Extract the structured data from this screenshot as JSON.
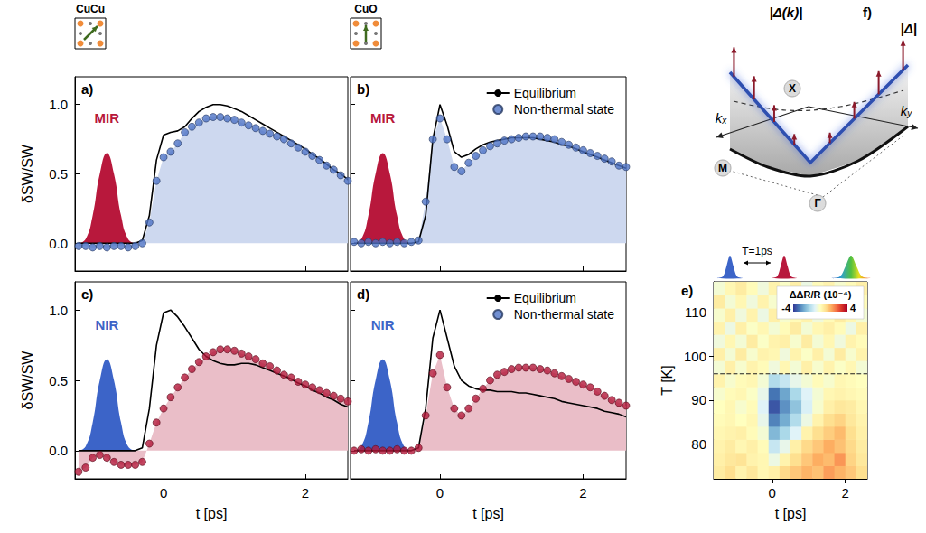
{
  "chart_data": [
    {
      "type": "line",
      "letter": "a)",
      "header": "CuCu",
      "ylabel": "δSW/SW",
      "xlim": [
        -1.25,
        2.6
      ],
      "ylim": [
        -0.2,
        1.2
      ],
      "xticks": [
        0,
        2
      ],
      "yticks": [
        {
          "value": 0,
          "label": "0.0"
        },
        {
          "value": 0.5,
          "label": "0.5"
        },
        {
          "value": 1,
          "label": "1.0"
        }
      ],
      "tick_labels": "y",
      "grid": false,
      "x": [
        -1.2,
        -1.1,
        -1,
        -0.9,
        -0.8,
        -0.7,
        -0.6,
        -0.5,
        -0.4,
        -0.3,
        -0.2,
        -0.1,
        0,
        0.1,
        0.2,
        0.3,
        0.4,
        0.5,
        0.6,
        0.7,
        0.8,
        0.9,
        1,
        1.1,
        1.2,
        1.3,
        1.4,
        1.5,
        1.6,
        1.7,
        1.8,
        1.9,
        2,
        2.1,
        2.2,
        2.3,
        2.4,
        2.5,
        2.6
      ],
      "series": [
        {
          "name": "Equilibrium",
          "type": "line",
          "color": "#000000",
          "values": [
            0,
            0,
            0,
            0,
            0,
            0,
            0,
            0,
            0,
            0.02,
            0.2,
            0.6,
            0.78,
            0.8,
            0.81,
            0.84,
            0.9,
            0.95,
            0.98,
            1.0,
            1.0,
            0.99,
            0.97,
            0.95,
            0.92,
            0.89,
            0.86,
            0.83,
            0.8,
            0.77,
            0.74,
            0.71,
            0.68,
            0.64,
            0.61,
            0.57,
            0.53,
            0.5,
            0.46
          ]
        },
        {
          "name": "Non-thermal state",
          "type": "scatter",
          "marker": "circle",
          "color": "#4e73c6",
          "values": [
            -0.02,
            -0.02,
            -0.03,
            -0.02,
            -0.03,
            -0.02,
            -0.02,
            -0.03,
            -0.02,
            0,
            0.15,
            0.45,
            0.62,
            0.66,
            0.72,
            0.8,
            0.84,
            0.87,
            0.9,
            0.91,
            0.91,
            0.9,
            0.89,
            0.87,
            0.85,
            0.83,
            0.81,
            0.79,
            0.77,
            0.75,
            0.72,
            0.69,
            0.66,
            0.63,
            0.6,
            0.56,
            0.53,
            0.49,
            0.45
          ]
        }
      ],
      "pump": {
        "label": "MIR",
        "color": "#b8183c",
        "x": [
          -1.2,
          -1.1,
          -1,
          -0.9,
          -0.8,
          -0.7,
          -0.6,
          -0.5,
          -0.4
        ],
        "values": [
          0,
          0.03,
          0.2,
          0.5,
          0.65,
          0.5,
          0.2,
          0.03,
          0
        ]
      }
    },
    {
      "type": "line",
      "letter": "b)",
      "header": "CuO",
      "xlim": [
        -1.25,
        2.6
      ],
      "ylim": [
        -0.2,
        1.2
      ],
      "xticks": [
        0,
        2
      ],
      "yticks": [
        {
          "value": 0,
          "label": "0.0"
        },
        {
          "value": 0.5,
          "label": "0.5"
        },
        {
          "value": 1,
          "label": "1.0"
        }
      ],
      "tick_labels": false,
      "grid": false,
      "legend": "upper right",
      "x": [
        -1.2,
        -1.1,
        -1,
        -0.9,
        -0.8,
        -0.7,
        -0.6,
        -0.5,
        -0.4,
        -0.3,
        -0.2,
        -0.1,
        0,
        0.1,
        0.2,
        0.3,
        0.4,
        0.5,
        0.6,
        0.7,
        0.8,
        0.9,
        1,
        1.1,
        1.2,
        1.3,
        1.4,
        1.5,
        1.6,
        1.7,
        1.8,
        1.9,
        2,
        2.1,
        2.2,
        2.3,
        2.4,
        2.5,
        2.6
      ],
      "series": [
        {
          "name": "Equilibrium",
          "type": "line",
          "color": "#000000",
          "values": [
            0,
            0,
            0,
            0,
            0,
            0,
            0,
            0,
            0,
            0.01,
            0.2,
            0.75,
            1.0,
            0.85,
            0.66,
            0.62,
            0.64,
            0.68,
            0.71,
            0.73,
            0.74,
            0.75,
            0.76,
            0.76,
            0.76,
            0.76,
            0.75,
            0.74,
            0.73,
            0.71,
            0.7,
            0.68,
            0.66,
            0.64,
            0.62,
            0.6,
            0.58,
            0.56,
            0.54
          ]
        },
        {
          "name": "Non-thermal state",
          "type": "scatter",
          "marker": "circle",
          "color": "#4e73c6",
          "values": [
            0.01,
            0,
            0.01,
            0,
            0.01,
            0,
            0.01,
            0,
            0.01,
            0.02,
            0.3,
            0.75,
            0.9,
            0.75,
            0.55,
            0.52,
            0.58,
            0.63,
            0.67,
            0.7,
            0.72,
            0.74,
            0.75,
            0.76,
            0.77,
            0.77,
            0.77,
            0.76,
            0.75,
            0.73,
            0.71,
            0.69,
            0.67,
            0.65,
            0.63,
            0.61,
            0.59,
            0.56,
            0.55
          ]
        }
      ],
      "pump": {
        "label": "MIR",
        "color": "#b8183c",
        "x": [
          -1.2,
          -1.1,
          -1,
          -0.9,
          -0.8,
          -0.7,
          -0.6,
          -0.5,
          -0.4
        ],
        "values": [
          0,
          0.03,
          0.2,
          0.5,
          0.65,
          0.5,
          0.2,
          0.03,
          0
        ]
      }
    },
    {
      "type": "line",
      "letter": "c)",
      "ylabel": "δSW/SW",
      "xlabel": "t [ps]",
      "xlim": [
        -1.25,
        2.6
      ],
      "ylim": [
        -0.2,
        1.2
      ],
      "xticks": [
        0,
        2
      ],
      "yticks": [
        {
          "value": 0,
          "label": "0.0"
        },
        {
          "value": 0.5,
          "label": "0.5"
        },
        {
          "value": 1,
          "label": "1.0"
        }
      ],
      "grid": false,
      "x": [
        -1.2,
        -1.1,
        -1,
        -0.9,
        -0.8,
        -0.7,
        -0.6,
        -0.5,
        -0.4,
        -0.3,
        -0.2,
        -0.1,
        0,
        0.1,
        0.2,
        0.3,
        0.4,
        0.5,
        0.6,
        0.7,
        0.8,
        0.9,
        1,
        1.1,
        1.2,
        1.3,
        1.4,
        1.5,
        1.6,
        1.7,
        1.8,
        1.9,
        2,
        2.1,
        2.2,
        2.3,
        2.4,
        2.5,
        2.6
      ],
      "series": [
        {
          "name": "Equilibrium",
          "type": "line",
          "color": "#000000",
          "values": [
            0,
            0,
            0,
            0,
            0,
            0,
            0,
            0,
            0,
            0.02,
            0.3,
            0.75,
            0.98,
            1.0,
            0.95,
            0.88,
            0.8,
            0.72,
            0.67,
            0.64,
            0.62,
            0.61,
            0.61,
            0.62,
            0.62,
            0.61,
            0.59,
            0.57,
            0.55,
            0.53,
            0.51,
            0.48,
            0.46,
            0.43,
            0.41,
            0.38,
            0.36,
            0.33,
            0.31
          ]
        },
        {
          "name": "Non-thermal state",
          "type": "scatter",
          "marker": "circle",
          "color": "#b3183a",
          "values": [
            -0.15,
            -0.12,
            -0.05,
            -0.03,
            -0.05,
            -0.08,
            -0.1,
            -0.1,
            -0.1,
            -0.08,
            0.05,
            0.2,
            0.3,
            0.38,
            0.45,
            0.52,
            0.58,
            0.63,
            0.67,
            0.7,
            0.72,
            0.72,
            0.71,
            0.69,
            0.67,
            0.65,
            0.62,
            0.6,
            0.57,
            0.54,
            0.52,
            0.49,
            0.47,
            0.45,
            0.43,
            0.41,
            0.39,
            0.37,
            0.35
          ]
        }
      ],
      "pump": {
        "label": "NIR",
        "color": "#3c64c8",
        "x": [
          -1.2,
          -1.1,
          -1,
          -0.9,
          -0.8,
          -0.7,
          -0.6,
          -0.5,
          -0.4
        ],
        "values": [
          0,
          0.03,
          0.2,
          0.5,
          0.65,
          0.5,
          0.2,
          0.03,
          0
        ]
      }
    },
    {
      "type": "line",
      "letter": "d)",
      "xlabel": "t [ps]",
      "xlim": [
        -1.25,
        2.6
      ],
      "ylim": [
        -0.2,
        1.2
      ],
      "xticks": [
        0,
        2
      ],
      "yticks": [
        {
          "value": 0,
          "label": "0.0"
        },
        {
          "value": 0.5,
          "label": "0.5"
        },
        {
          "value": 1,
          "label": "1.0"
        }
      ],
      "tick_labels": "x",
      "grid": false,
      "legend": "upper right",
      "x": [
        -1.2,
        -1.1,
        -1,
        -0.9,
        -0.8,
        -0.7,
        -0.6,
        -0.5,
        -0.4,
        -0.3,
        -0.2,
        -0.1,
        0,
        0.1,
        0.2,
        0.3,
        0.4,
        0.5,
        0.6,
        0.7,
        0.8,
        0.9,
        1,
        1.1,
        1.2,
        1.3,
        1.4,
        1.5,
        1.6,
        1.7,
        1.8,
        1.9,
        2,
        2.1,
        2.2,
        2.3,
        2.4,
        2.5,
        2.6
      ],
      "series": [
        {
          "name": "Equilibrium",
          "type": "line",
          "color": "#000000",
          "values": [
            0,
            0,
            0,
            0,
            0,
            0,
            0,
            0,
            0,
            0.02,
            0.3,
            0.8,
            1.0,
            0.8,
            0.6,
            0.5,
            0.46,
            0.44,
            0.43,
            0.43,
            0.42,
            0.42,
            0.42,
            0.41,
            0.41,
            0.4,
            0.39,
            0.38,
            0.37,
            0.35,
            0.34,
            0.33,
            0.32,
            0.31,
            0.3,
            0.28,
            0.27,
            0.26,
            0.24
          ]
        },
        {
          "name": "Non-thermal state",
          "type": "scatter",
          "marker": "circle",
          "color": "#b3183a",
          "values": [
            0,
            0.01,
            0,
            0.01,
            0,
            0,
            0.01,
            0,
            0,
            0.02,
            0.25,
            0.55,
            0.68,
            0.45,
            0.3,
            0.25,
            0.3,
            0.37,
            0.44,
            0.5,
            0.54,
            0.56,
            0.58,
            0.59,
            0.59,
            0.59,
            0.58,
            0.57,
            0.55,
            0.53,
            0.51,
            0.49,
            0.47,
            0.45,
            0.42,
            0.39,
            0.36,
            0.34,
            0.32
          ]
        }
      ],
      "pump": {
        "label": "NIR",
        "color": "#3c64c8",
        "x": [
          -1.2,
          -1.1,
          -1,
          -0.9,
          -0.8,
          -0.7,
          -0.6,
          -0.5,
          -0.4
        ],
        "values": [
          0,
          0.03,
          0.2,
          0.5,
          0.65,
          0.5,
          0.2,
          0.03,
          0
        ]
      }
    },
    {
      "type": "heatmap",
      "letter": "e)",
      "xlabel": "t [ps]",
      "ylabel": "T [K]",
      "xlim": [
        -1.6,
        2.6
      ],
      "ylim": [
        72,
        117
      ],
      "xticks": [
        0,
        2
      ],
      "yticks": [
        80,
        90,
        100,
        110
      ],
      "grid": false,
      "hline": 96,
      "line_style": "dashed",
      "pulse_label": "T=1ps",
      "x": [
        -1.45,
        -1.15,
        -0.85,
        -0.55,
        -0.25,
        0.05,
        0.35,
        0.65,
        0.95,
        1.25,
        1.55,
        1.85,
        2.15,
        2.45
      ],
      "y": [
        73.5,
        76.5,
        79.5,
        82.5,
        85.5,
        88.5,
        91.5,
        94.5,
        97.5,
        100.5,
        103.5,
        106.5,
        109.5,
        112.5,
        115.5
      ],
      "cells": [
        [
          0.5,
          0.8,
          0.3,
          0.6,
          0.2,
          0.4,
          0.9,
          1.2,
          1.5,
          1.3,
          1.8,
          1.5,
          1.2,
          0.8
        ],
        [
          0.4,
          0.6,
          0.7,
          0.3,
          0.2,
          -0.5,
          0.3,
          0.8,
          1.2,
          1.6,
          1.4,
          1.9,
          1.0,
          0.6
        ],
        [
          0.3,
          0.5,
          0.2,
          0.4,
          0.1,
          -1.2,
          -0.6,
          0.4,
          0.9,
          1.2,
          1.6,
          1.3,
          0.9,
          0.5
        ],
        [
          0.2,
          0.3,
          0.4,
          0.1,
          -0.3,
          -2.2,
          -1.6,
          -0.8,
          0.3,
          0.8,
          1.1,
          1.4,
          0.8,
          0.4
        ],
        [
          0.1,
          0.2,
          0,
          0.2,
          -0.6,
          -3.0,
          -2.4,
          -1.5,
          -0.5,
          0.3,
          0.8,
          1.0,
          0.6,
          0.3
        ],
        [
          0,
          0.2,
          -0.2,
          0.1,
          -0.8,
          -3.6,
          -2.8,
          -2.0,
          -0.9,
          -0.2,
          0.4,
          0.6,
          0.5,
          0.2
        ],
        [
          -0.2,
          0.1,
          0.2,
          -0.1,
          -0.6,
          -3.2,
          -2.5,
          -1.6,
          -0.8,
          -0.3,
          0.2,
          0.3,
          0.2,
          0.1
        ],
        [
          0.3,
          -0.2,
          0.1,
          0.2,
          -0.3,
          -1.5,
          -1.2,
          -0.6,
          -0.3,
          0.1,
          -0.2,
          0.2,
          0.1,
          0
        ],
        [
          -0.3,
          0.4,
          -0.2,
          0.3,
          0.1,
          -0.4,
          0.2,
          -0.3,
          0.4,
          -0.2,
          0.3,
          -0.1,
          0.2,
          -0.3
        ],
        [
          0.4,
          -0.3,
          0.5,
          -0.2,
          0.3,
          0.2,
          -0.4,
          0.3,
          -0.1,
          0.4,
          -0.3,
          0.5,
          -0.2,
          0.3
        ],
        [
          -0.4,
          0.2,
          -0.3,
          0.5,
          -0.1,
          0.3,
          0.4,
          -0.2,
          0.5,
          -0.3,
          0.2,
          -0.4,
          0.3,
          0.1
        ],
        [
          0.3,
          -0.5,
          0.4,
          -0.1,
          0.2,
          -0.3,
          0.1,
          0.5,
          -0.3,
          0.2,
          0.4,
          0.1,
          -0.5,
          0.4
        ],
        [
          -0.2,
          0.4,
          -0.4,
          0.3,
          -0.5,
          0.4,
          -0.2,
          0.1,
          0.3,
          -0.4,
          0.1,
          0.5,
          0.2,
          -0.3
        ],
        [
          0.5,
          -0.3,
          0.2,
          -0.4,
          0.3,
          -0.2,
          0.5,
          -0.3,
          0.2,
          0.3,
          -0.4,
          0.2,
          0.4,
          0.1
        ],
        [
          -0.3,
          0.2,
          0.5,
          0.1,
          -0.4,
          0.3,
          -0.1,
          0.4,
          -0.5,
          0.1,
          0.3,
          -0.2,
          0.1,
          0.4
        ]
      ],
      "colorbar": {
        "label": "ΔΔR/R (10⁻⁴)",
        "range": [
          -4,
          4
        ],
        "ticks": [
          -4,
          4
        ],
        "colors": [
          "#313695",
          "#4575b4",
          "#74add1",
          "#abd9e9",
          "#e0f3f8",
          "#ffffbf",
          "#fee090",
          "#fdae61",
          "#f46d43",
          "#d73027",
          "#a50026"
        ]
      }
    }
  ],
  "diagram": {
    "letter": "f)",
    "labels": {
      "gap": "|Δ(k)|",
      "max": "|Δ|"
    },
    "points": [
      "X",
      "M",
      "Γ"
    ],
    "axes": [
      {
        "base": "k",
        "sub": "x"
      },
      {
        "base": "k",
        "sub": "y"
      }
    ]
  }
}
